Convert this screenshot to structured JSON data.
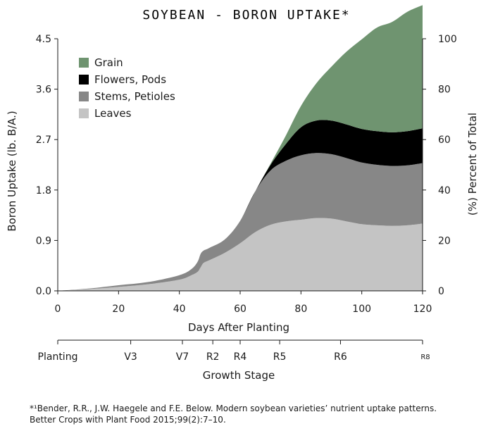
{
  "chart_data": {
    "type": "area",
    "stacked": true,
    "title": "SOYBEAN - BORON UPTAKE*",
    "xlabel": "Days After Planting",
    "ylabel": "Boron Uptake (lb. B/A.)",
    "y2label": "(%) Percent of Total",
    "xlim": [
      0,
      120
    ],
    "ylim": [
      0,
      4.5
    ],
    "y2lim": [
      0,
      100
    ],
    "xticks": [
      "0",
      "20",
      "40",
      "60",
      "80",
      "100",
      "120"
    ],
    "yticks": [
      "0.0",
      "0.9",
      "1.8",
      "2.7",
      "3.6",
      "4.5"
    ],
    "y2ticks": [
      "0",
      "20",
      "40",
      "60",
      "80",
      "100"
    ],
    "grid": false,
    "legend_position": "top-left",
    "x": [
      0,
      10,
      20,
      30,
      40,
      44,
      46,
      47,
      48,
      50,
      55,
      60,
      65,
      70,
      75,
      80,
      85,
      90,
      95,
      100,
      105,
      110,
      115,
      120
    ],
    "series": [
      {
        "name": "Leaves",
        "color": "#c4c4c4",
        "values": [
          0,
          0.03,
          0.07,
          0.12,
          0.2,
          0.28,
          0.34,
          0.42,
          0.5,
          0.55,
          0.68,
          0.85,
          1.05,
          1.18,
          1.24,
          1.27,
          1.3,
          1.29,
          1.24,
          1.19,
          1.17,
          1.16,
          1.17,
          1.2
        ]
      },
      {
        "name": "Stems, Petioles",
        "color": "#878787",
        "values": [
          0,
          0.01,
          0.03,
          0.04,
          0.08,
          0.11,
          0.18,
          0.24,
          0.22,
          0.22,
          0.24,
          0.4,
          0.73,
          0.97,
          1.08,
          1.15,
          1.16,
          1.15,
          1.13,
          1.1,
          1.08,
          1.07,
          1.07,
          1.08
        ]
      },
      {
        "name": "Flowers, Pods",
        "color": "#000000",
        "values": [
          0,
          0,
          0,
          0,
          0,
          0,
          0,
          0,
          0,
          0,
          0,
          0,
          0,
          0.1,
          0.3,
          0.5,
          0.58,
          0.6,
          0.6,
          0.6,
          0.6,
          0.6,
          0.61,
          0.62
        ]
      },
      {
        "name": "Grain",
        "color": "#6f9470",
        "values": [
          0,
          0,
          0,
          0,
          0,
          0,
          0,
          0,
          0,
          0,
          0,
          0,
          0,
          0.02,
          0.15,
          0.38,
          0.66,
          0.96,
          1.3,
          1.6,
          1.85,
          1.97,
          2.13,
          2.2
        ]
      }
    ],
    "growth_stage_label": "Growth Stage",
    "growth_stages": [
      {
        "label": "Planting",
        "day": 0
      },
      {
        "label": "V3",
        "day": 24
      },
      {
        "label": "V7",
        "day": 41
      },
      {
        "label": "R2",
        "day": 51
      },
      {
        "label": "R4",
        "day": 60
      },
      {
        "label": "R5",
        "day": 73
      },
      {
        "label": "R6",
        "day": 93
      },
      {
        "label": "R8",
        "day": 120
      }
    ]
  },
  "footnote": {
    "line1": "*¹Bender, R.R., J.W. Haegele and F.E. Below. Modern soybean varieties’ nutrient uptake patterns.",
    "line2": "Better Crops with Plant Food 2015;99(2):7–10."
  }
}
